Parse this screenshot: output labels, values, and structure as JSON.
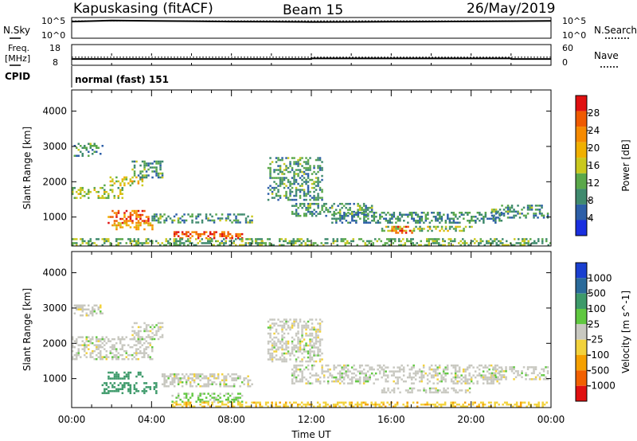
{
  "header": {
    "station": "Kapuskasing (fitACF)",
    "beam": "Beam 15",
    "date": "26/May/2019"
  },
  "sky_panel": {
    "left_label": "N.Sky",
    "right_label": "N.Search",
    "tick_top_left": "10^5",
    "tick_bottom_left": "10^0",
    "tick_top_right": "10^5",
    "tick_bottom_right": "10^0"
  },
  "freq_panel": {
    "left_label_1": "Freq.",
    "left_label_2": "[MHz]",
    "tick_top_left": "18",
    "tick_bottom_left": "8",
    "right_label": "Nave",
    "tick_top_right": "60",
    "tick_bottom_right": "0"
  },
  "cpid": {
    "label": "CPID",
    "value": "normal (fast) 151"
  },
  "range_ticks": [
    "1000",
    "2000",
    "3000",
    "4000"
  ],
  "time_ticks": [
    "00:00",
    "04:00",
    "08:00",
    "12:00",
    "16:00",
    "20:00",
    "00:00"
  ],
  "xlabel": "Time UT",
  "ylabel": "Slant Range [km]",
  "power_colorbar": {
    "label": "Power [dB]",
    "ticks": [
      "4",
      "8",
      "12",
      "16",
      "20",
      "24",
      "28"
    ],
    "colors": [
      "#1a2fe0",
      "#2d5fa8",
      "#3f8a6e",
      "#5aa84a",
      "#c9c81e",
      "#f0b000",
      "#f58a00",
      "#ef5a00",
      "#e01010"
    ]
  },
  "velocity_colorbar": {
    "label": "Velocity [m s^-1]",
    "ticks": [
      "1000",
      "500",
      "100",
      "25",
      "-25",
      "-100",
      "-500",
      "-1000"
    ],
    "colors": [
      "#1a3fd0",
      "#2a6a9a",
      "#3d9a6a",
      "#60c840",
      "#c8c8c0",
      "#f2d23c",
      "#f5a000",
      "#f26000",
      "#e01010"
    ]
  },
  "chart_data": [
    {
      "type": "line",
      "title": "N.Sky / N.Search",
      "x_range_hours": [
        0,
        24
      ],
      "y_scale": "log",
      "ylim": [
        1,
        100000
      ],
      "series": [
        {
          "name": "N.Sky",
          "style": "solid",
          "x": [
            0,
            2,
            4,
            6,
            8,
            10,
            12,
            14,
            16,
            18,
            20,
            22,
            24
          ],
          "values": [
            20000,
            40000,
            30000,
            25000,
            20000,
            18000,
            15000,
            16000,
            18000,
            20000,
            22000,
            25000,
            30000
          ]
        },
        {
          "name": "N.Search",
          "style": "dotted",
          "x": [
            0,
            8,
            16,
            24
          ],
          "values": [
            30000,
            30000,
            30000,
            30000
          ]
        }
      ]
    },
    {
      "type": "line",
      "title": "Freq. / Nave",
      "x_range_hours": [
        0,
        24
      ],
      "series": [
        {
          "name": "Freq. [MHz]",
          "style": "solid",
          "ylim": [
            8,
            18
          ],
          "x": [
            0,
            12.0,
            12.01,
            22.0,
            22.01,
            24
          ],
          "values": [
            10.7,
            10.7,
            11.0,
            11.0,
            10.7,
            10.7
          ]
        },
        {
          "name": "Nave",
          "style": "dotted",
          "ylim": [
            0,
            60
          ],
          "x": [
            0,
            24
          ],
          "values": [
            22,
            22
          ]
        }
      ]
    },
    {
      "type": "heatmap",
      "title": "Power [dB]",
      "xlabel": "Time UT",
      "ylabel": "Slant Range [km]",
      "x_range_hours": [
        0,
        24
      ],
      "ylim": [
        180,
        4600
      ],
      "value_range_db": [
        0,
        32
      ],
      "regions": [
        {
          "t0": 0.1,
          "t1": 1.5,
          "r0": 2750,
          "r1": 3100,
          "value": 10
        },
        {
          "t0": 0.0,
          "t1": 2.5,
          "r0": 1550,
          "r1": 1850,
          "value": 14
        },
        {
          "t0": 1.5,
          "t1": 3.5,
          "r0": 1900,
          "r1": 2150,
          "value": 18
        },
        {
          "t0": 3.0,
          "t1": 4.5,
          "r0": 2100,
          "r1": 2600,
          "value": 10
        },
        {
          "t0": 1.8,
          "t1": 3.8,
          "r0": 850,
          "r1": 1200,
          "value": 26
        },
        {
          "t0": 2.0,
          "t1": 4.0,
          "r0": 650,
          "r1": 850,
          "value": 20
        },
        {
          "t0": 4.0,
          "t1": 9.0,
          "r0": 850,
          "r1": 1100,
          "value": 10
        },
        {
          "t0": 5.0,
          "t1": 8.5,
          "r0": 400,
          "r1": 600,
          "value": 27
        },
        {
          "t0": 8.5,
          "t1": 9.5,
          "r0": 250,
          "r1": 400,
          "value": 16
        },
        {
          "t0": 9.8,
          "t1": 12.5,
          "r0": 1500,
          "r1": 2700,
          "value": 10
        },
        {
          "t0": 11.0,
          "t1": 15.0,
          "r0": 1050,
          "r1": 1400,
          "value": 10
        },
        {
          "t0": 13.0,
          "t1": 21.5,
          "r0": 850,
          "r1": 1150,
          "value": 9
        },
        {
          "t0": 15.5,
          "t1": 20.0,
          "r0": 600,
          "r1": 750,
          "value": 14
        },
        {
          "t0": 16.0,
          "t1": 17.0,
          "r0": 550,
          "r1": 750,
          "value": 26
        },
        {
          "t0": 21.0,
          "t1": 23.8,
          "r0": 1000,
          "r1": 1350,
          "value": 10
        },
        {
          "t0": 0.0,
          "t1": 24.0,
          "r0": 200,
          "r1": 400,
          "value": 12
        }
      ]
    },
    {
      "type": "heatmap",
      "title": "Velocity [m s^-1]",
      "xlabel": "Time UT",
      "ylabel": "Slant Range [km]",
      "x_range_hours": [
        0,
        24
      ],
      "ylim": [
        180,
        4600
      ],
      "value_range_ms": [
        -1000,
        1000
      ],
      "regions": [
        {
          "t0": 0.1,
          "t1": 1.5,
          "r0": 2800,
          "r1": 3100,
          "value": 0
        },
        {
          "t0": 0.0,
          "t1": 4.0,
          "r0": 1550,
          "r1": 2200,
          "value": 0
        },
        {
          "t0": 3.0,
          "t1": 4.5,
          "r0": 2100,
          "r1": 2600,
          "value": 0
        },
        {
          "t0": 1.8,
          "t1": 3.5,
          "r0": 1000,
          "r1": 1200,
          "value": 300
        },
        {
          "t0": 1.5,
          "t1": 4.2,
          "r0": 600,
          "r1": 900,
          "value": 150
        },
        {
          "t0": 4.5,
          "t1": 9.0,
          "r0": 800,
          "r1": 1150,
          "value": 0
        },
        {
          "t0": 5.0,
          "t1": 8.5,
          "r0": 350,
          "r1": 600,
          "value": 40
        },
        {
          "t0": 5.0,
          "t1": 24.0,
          "r0": 200,
          "r1": 350,
          "value": -80
        },
        {
          "t0": 9.8,
          "t1": 12.5,
          "r0": 1500,
          "r1": 2700,
          "value": 0
        },
        {
          "t0": 11.0,
          "t1": 21.5,
          "r0": 850,
          "r1": 1400,
          "value": 0
        },
        {
          "t0": 15.5,
          "t1": 20.0,
          "r0": 600,
          "r1": 750,
          "value": 0
        },
        {
          "t0": 21.0,
          "t1": 23.8,
          "r0": 1000,
          "r1": 1350,
          "value": 0
        }
      ]
    }
  ]
}
